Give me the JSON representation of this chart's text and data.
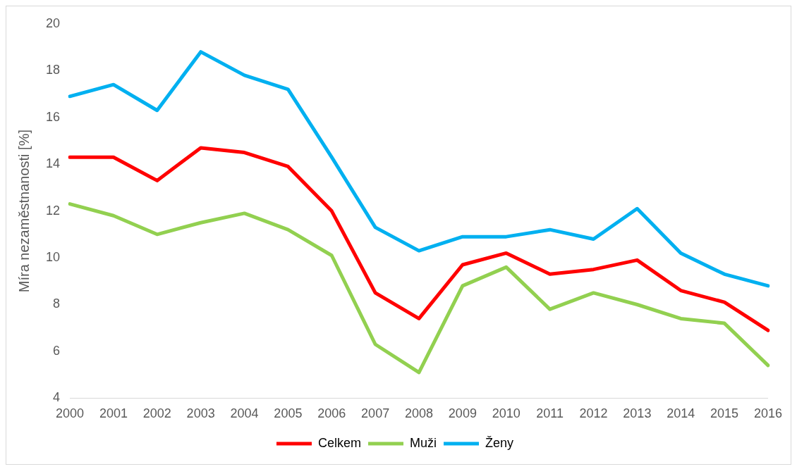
{
  "chart_data": {
    "type": "line",
    "ylabel": "Míra nezaměstnanosti [%]",
    "categories": [
      "2000",
      "2001",
      "2002",
      "2003",
      "2004",
      "2005",
      "2006",
      "2007",
      "2008",
      "2009",
      "2010",
      "2011",
      "2012",
      "2013",
      "2014",
      "2015",
      "2016"
    ],
    "series": [
      {
        "name": "Celkem",
        "color": "#ff0000",
        "values": [
          14.3,
          14.3,
          13.3,
          14.7,
          14.5,
          13.9,
          12.0,
          8.5,
          7.4,
          9.7,
          10.2,
          9.3,
          9.5,
          9.9,
          8.6,
          8.1,
          6.9
        ]
      },
      {
        "name": "Muži",
        "color": "#92d050",
        "values": [
          12.3,
          11.8,
          11.0,
          11.5,
          11.9,
          11.2,
          10.1,
          6.3,
          5.1,
          8.8,
          9.6,
          7.8,
          8.5,
          8.0,
          7.4,
          7.2,
          5.4
        ]
      },
      {
        "name": "Ženy",
        "color": "#00b0f0",
        "values": [
          16.9,
          17.4,
          16.3,
          18.8,
          17.8,
          17.2,
          14.3,
          11.3,
          10.3,
          10.9,
          10.9,
          11.2,
          10.8,
          12.1,
          10.2,
          9.3,
          8.8
        ]
      }
    ],
    "ylim": [
      4,
      20
    ],
    "yticks": [
      4,
      6,
      8,
      10,
      12,
      14,
      16,
      18,
      20
    ],
    "grid": false,
    "legend": "bottom",
    "marker": "none",
    "line_style": "solid"
  }
}
